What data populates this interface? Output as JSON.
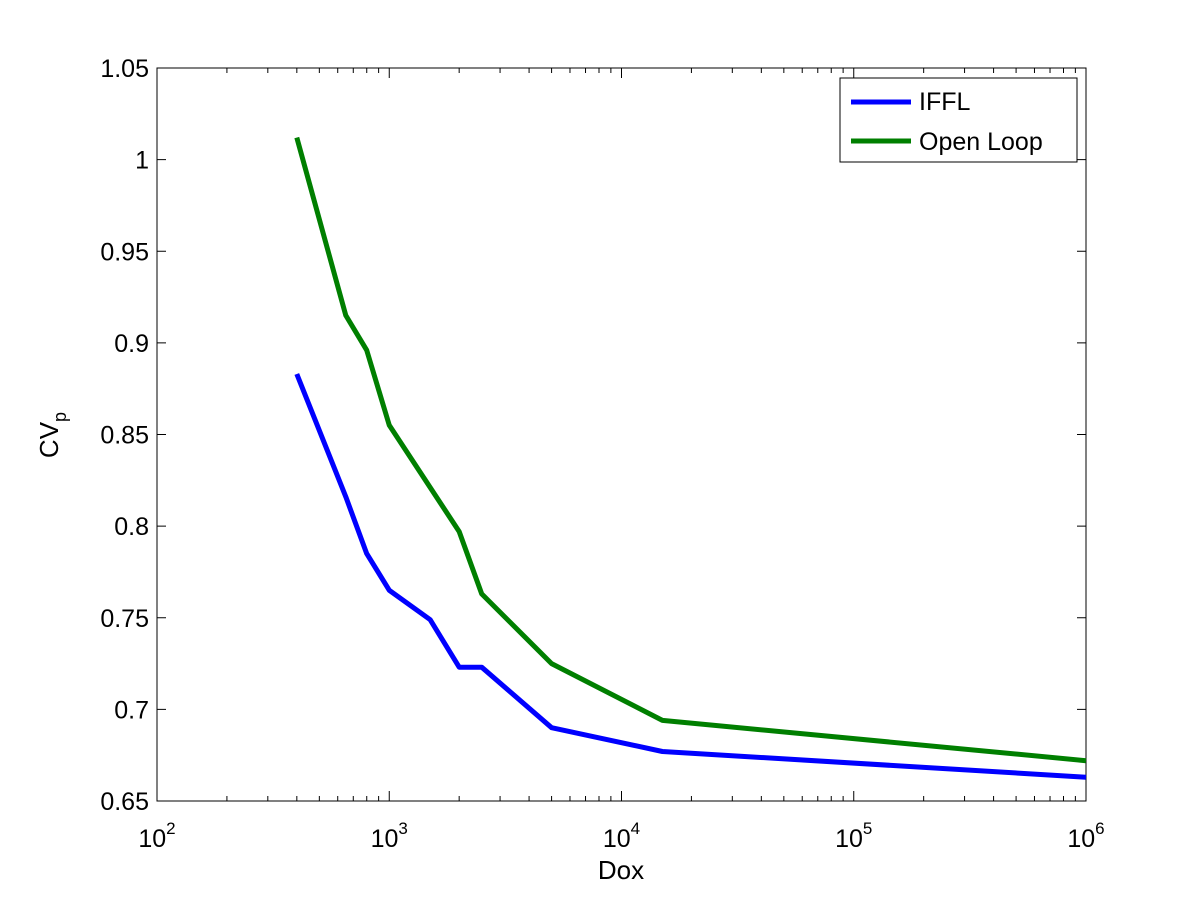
{
  "chart_data": {
    "type": "line",
    "xscale": "log",
    "xlabel": "Dox",
    "ylabel_main": "CV",
    "ylabel_sub": "p",
    "xlim": [
      100,
      1000000
    ],
    "ylim": [
      0.65,
      1.05
    ],
    "xticks": [
      {
        "value": 100,
        "base": "10",
        "exp": "2"
      },
      {
        "value": 1000,
        "base": "10",
        "exp": "3"
      },
      {
        "value": 10000,
        "base": "10",
        "exp": "4"
      },
      {
        "value": 100000,
        "base": "10",
        "exp": "5"
      },
      {
        "value": 1000000,
        "base": "10",
        "exp": "6"
      }
    ],
    "yticks": [
      {
        "value": 0.65,
        "label": "0.65"
      },
      {
        "value": 0.7,
        "label": "0.7"
      },
      {
        "value": 0.75,
        "label": "0.75"
      },
      {
        "value": 0.8,
        "label": "0.8"
      },
      {
        "value": 0.85,
        "label": "0.85"
      },
      {
        "value": 0.9,
        "label": "0.9"
      },
      {
        "value": 0.95,
        "label": "0.95"
      },
      {
        "value": 1.0,
        "label": "1"
      },
      {
        "value": 1.05,
        "label": "1.05"
      }
    ],
    "grid": false,
    "legend_position": "top-right",
    "series": [
      {
        "name": "IFFL",
        "color": "#0000ff",
        "x": [
          400,
          650,
          800,
          1000,
          1500,
          2000,
          2500,
          5000,
          15000,
          1000000
        ],
        "y": [
          0.883,
          0.816,
          0.785,
          0.765,
          0.749,
          0.723,
          0.723,
          0.69,
          0.677,
          0.663
        ]
      },
      {
        "name": "Open Loop",
        "color": "#007f00",
        "x": [
          400,
          650,
          800,
          1000,
          2000,
          2500,
          5000,
          15000,
          1000000
        ],
        "y": [
          1.012,
          0.915,
          0.896,
          0.855,
          0.797,
          0.763,
          0.725,
          0.694,
          0.672
        ]
      }
    ]
  }
}
